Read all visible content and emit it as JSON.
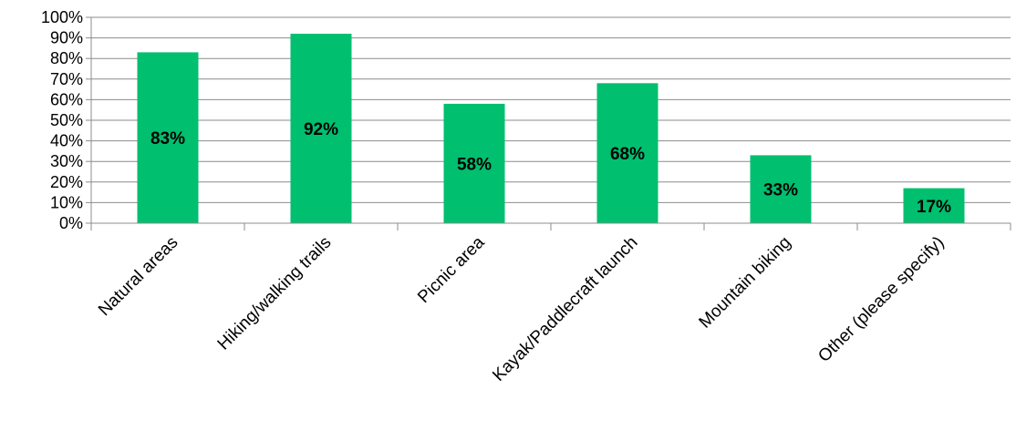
{
  "chart_data": {
    "type": "bar",
    "title": "",
    "xlabel": "",
    "ylabel": "",
    "categories": [
      "Natural areas",
      "Hiking/walking trails",
      "Picnic area",
      "Kayak/Paddlecraft launch",
      "Mountain biking",
      "Other (please specify)"
    ],
    "values": [
      83,
      92,
      58,
      68,
      33,
      17
    ],
    "data_labels": [
      "83%",
      "92%",
      "58%",
      "68%",
      "33%",
      "17%"
    ],
    "ylim": [
      0,
      100
    ],
    "y_ticks": [
      0,
      10,
      20,
      30,
      40,
      50,
      60,
      70,
      80,
      90,
      100
    ],
    "y_tick_labels": [
      "0%",
      "10%",
      "20%",
      "30%",
      "40%",
      "50%",
      "60%",
      "70%",
      "80%",
      "90%",
      "100%"
    ],
    "grid": true,
    "legend": "none",
    "bar_color": "#00BF6F",
    "grid_color": "#8C8C8C"
  }
}
